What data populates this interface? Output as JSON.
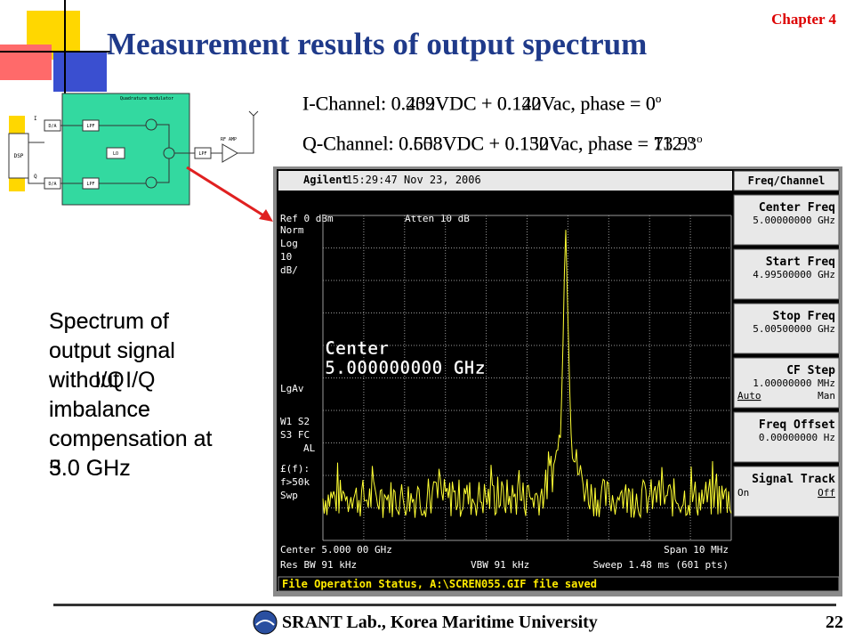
{
  "header": {
    "chapter": "Chapter 4",
    "title": "Measurement results of output spectrum"
  },
  "channels": {
    "i_channel": [
      "I-Channel: 0.439VDC + 0.142Vac, phase = 0",
      "I-Channel: 0.202VDC + 0.120Vac, phase = 0"
    ],
    "q_channel": [
      "Q-Channel: 0.558VDC + 0.152Vac, phase = 112.3",
      "Q-Channel: 0.603VDC + 0.130Vac, phase = 73.9"
    ],
    "degree": "o"
  },
  "captions": [
    "Spectrum of output signal without I/Q imbalance compensation at 5.0 GHz",
    "Spectrum of output signal with I/Q imbalance compensation at 3.0 GHz"
  ],
  "diagram": {
    "dsp": "DSP",
    "da": "D/A",
    "lpf": "LPF",
    "lo": "LO",
    "rf_amp": "RF AMP",
    "modulator": "Quadrature modulator",
    "i": "I",
    "q": "Q"
  },
  "analyzer": {
    "brand": "Agilent",
    "timestamp": "15:29:47  Nov 23, 2006",
    "menu": "Freq/Channel",
    "ref": "Ref 0 dBm",
    "atten": "Atten 10 dB",
    "left_labels": [
      "Norm",
      "Log",
      "10",
      "dB/",
      "LgAv",
      "W1  S2",
      "S3  FC",
      "AL",
      "£(f):",
      "f>50k",
      "Swp"
    ],
    "marker": [
      "Center",
      "5.000000000 GHz"
    ],
    "bottom": {
      "center": "Center 5.000 00 GHz",
      "span": "Span 10 MHz",
      "rbw": "Res BW 91 kHz",
      "vbw": "VBW 91 kHz",
      "sweep": "Sweep 1.48 ms (601 pts)"
    },
    "softkeys": [
      {
        "title": "Center Freq",
        "value": "5.00000000 GHz"
      },
      {
        "title": "Start Freq",
        "value": "4.99500000 GHz"
      },
      {
        "title": "Stop Freq",
        "value": "5.00500000 GHz"
      },
      {
        "title": "CF Step",
        "value": "1.00000000 MHz",
        "left": "Auto",
        "right": "Man"
      },
      {
        "title": "Freq Offset",
        "value": "0.00000000 Hz"
      },
      {
        "title": "Signal Track",
        "left": "On",
        "right": "Off"
      }
    ],
    "status": "File Operation Status, A:\\SCREN055.GIF file saved"
  },
  "footer": {
    "lab": "SRANT Lab., Korea Maritime University",
    "page": "22"
  }
}
